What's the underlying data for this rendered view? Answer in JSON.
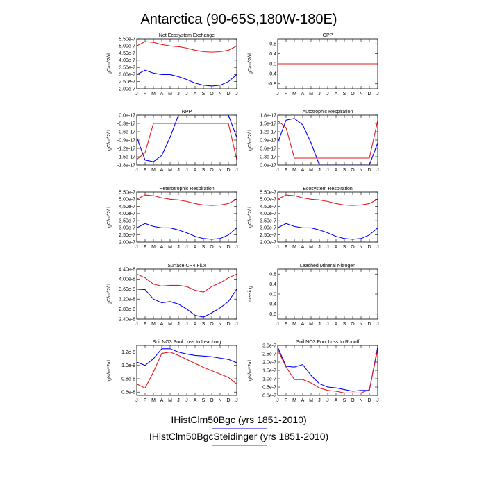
{
  "title": "Antarctica (90-65S,180W-180E)",
  "months": [
    "J",
    "F",
    "M",
    "A",
    "M",
    "J",
    "J",
    "A",
    "S",
    "O",
    "N",
    "D",
    "J"
  ],
  "colors": {
    "ctrl": "#0000ff",
    "exp": "#e31a1c"
  },
  "legend": [
    {
      "label": "IHistClm50Bgc (yrs 1851-2010)",
      "color": "#0000ff"
    },
    {
      "label": "IHistClm50BgcSteidinger (yrs 1851-2010)",
      "color": "#e31a1c"
    }
  ],
  "chart_data": [
    {
      "type": "line",
      "title": "Net Ecosystem Exchange",
      "ylabel": "gC/m^2/d",
      "ylim": [
        2e-07,
        5.5e-07
      ],
      "yticks": [
        2e-07,
        2.5e-07,
        3e-07,
        3.5e-07,
        4e-07,
        4.5e-07,
        5e-07,
        5.5e-07
      ],
      "ytick_labels": [
        "2.00e-7",
        "2.50e-7",
        "3.00e-7",
        "3.50e-7",
        "4.00e-7",
        "4.50e-7",
        "5.00e-7",
        "5.50e-7"
      ],
      "series": [
        {
          "values": [
            3e-07,
            3.3e-07,
            3.1e-07,
            3e-07,
            3e-07,
            2.85e-07,
            2.65e-07,
            2.4e-07,
            2.25e-07,
            2.2e-07,
            2.25e-07,
            2.5e-07,
            3e-07
          ]
        },
        {
          "values": [
            5e-07,
            5.3e-07,
            5.25e-07,
            5.1e-07,
            5e-07,
            4.95e-07,
            4.85e-07,
            4.7e-07,
            4.6e-07,
            4.57e-07,
            4.6e-07,
            4.7e-07,
            5e-07
          ]
        }
      ]
    },
    {
      "type": "line",
      "title": "GPP",
      "ylabel": "gC/m^2/d",
      "ylim": [
        -1.0,
        1.0
      ],
      "yticks": [
        -0.8,
        -0.4,
        0.0,
        0.4,
        0.8
      ],
      "ytick_labels": [
        "-0.8",
        "-0.4",
        "0.0",
        "0.4",
        "0.8"
      ],
      "series": [
        {
          "values": [
            0,
            0,
            0,
            0,
            0,
            0,
            0,
            0,
            0,
            0,
            0,
            0,
            0
          ]
        },
        {
          "values": [
            0,
            0,
            0,
            0,
            0,
            0,
            0,
            0,
            0,
            0,
            0,
            0,
            0
          ]
        }
      ]
    },
    {
      "type": "line",
      "title": "NPP",
      "ylabel": "gC/m^2/d",
      "ylim": [
        -1.8e-17,
        0.0
      ],
      "yticks": [
        0.0,
        -3e-18,
        -6e-18,
        -9e-18,
        -1.2e-17,
        -1.5e-17,
        -1.8e-17
      ],
      "ytick_labels": [
        "0.0e-17",
        "-0.3e-17",
        "-0.6e-17",
        "-0.9e-17",
        "-1.2e-17",
        "-1.5e-17",
        "-1.8e-17"
      ],
      "series": [
        {
          "values": [
            -8e-18,
            -1.62e-17,
            -1.68e-17,
            -1.45e-17,
            -8e-18,
            0.0,
            0.0,
            0.0,
            0.0,
            0.0,
            0.0,
            0.0,
            -8e-18
          ]
        },
        {
          "values": [
            -1.6e-17,
            -1.35e-17,
            -3e-18,
            -3e-18,
            -3e-18,
            -3e-18,
            -3e-18,
            -3e-18,
            -3e-18,
            -3e-18,
            -3e-18,
            -3e-18,
            -1.6e-17
          ]
        }
      ]
    },
    {
      "type": "line",
      "title": "Autotrophic Respiration",
      "ylabel": "gC/m^2/d",
      "ylim": [
        0.0,
        1.8e-17
      ],
      "yticks": [
        0.0,
        3e-18,
        6e-18,
        9e-18,
        1.2e-17,
        1.5e-17,
        1.8e-17
      ],
      "ytick_labels": [
        "0.0e-17",
        "0.3e-17",
        "0.6e-17",
        "0.9e-17",
        "1.2e-17",
        "1.5e-17",
        "1.8e-17"
      ],
      "series": [
        {
          "values": [
            8e-18,
            1.62e-17,
            1.68e-17,
            1.45e-17,
            8e-18,
            0.0,
            0.0,
            0.0,
            0.0,
            0.0,
            0.0,
            0.0,
            8e-18
          ]
        },
        {
          "values": [
            1.6e-17,
            1.35e-17,
            2.5e-18,
            2.5e-18,
            2.5e-18,
            2.5e-18,
            2.5e-18,
            2.5e-18,
            2.5e-18,
            2.5e-18,
            2.5e-18,
            2.5e-18,
            1.6e-17
          ]
        }
      ]
    },
    {
      "type": "line",
      "title": "Heterotrophic Respiration",
      "ylabel": "gC/m^2/d",
      "ylim": [
        2e-07,
        5.5e-07
      ],
      "yticks": [
        2e-07,
        2.5e-07,
        3e-07,
        3.5e-07,
        4e-07,
        4.5e-07,
        5e-07,
        5.5e-07
      ],
      "ytick_labels": [
        "2.00e-7",
        "2.50e-7",
        "3.00e-7",
        "3.50e-7",
        "4.00e-7",
        "4.50e-7",
        "5.00e-7",
        "5.50e-7"
      ],
      "series": [
        {
          "values": [
            3e-07,
            3.3e-07,
            3.1e-07,
            3e-07,
            3e-07,
            2.85e-07,
            2.65e-07,
            2.4e-07,
            2.25e-07,
            2.2e-07,
            2.25e-07,
            2.5e-07,
            3e-07
          ]
        },
        {
          "values": [
            5e-07,
            5.3e-07,
            5.25e-07,
            5.1e-07,
            5e-07,
            4.95e-07,
            4.85e-07,
            4.7e-07,
            4.6e-07,
            4.57e-07,
            4.6e-07,
            4.7e-07,
            5e-07
          ]
        }
      ]
    },
    {
      "type": "line",
      "title": "Ecosystem Respiration",
      "ylabel": "gC/m^2/d",
      "ylim": [
        2e-07,
        5.5e-07
      ],
      "yticks": [
        2e-07,
        2.5e-07,
        3e-07,
        3.5e-07,
        4e-07,
        4.5e-07,
        5e-07,
        5.5e-07
      ],
      "ytick_labels": [
        "2.00e-7",
        "2.50e-7",
        "3.00e-7",
        "3.50e-7",
        "4.00e-7",
        "4.50e-7",
        "5.00e-7",
        "5.50e-7"
      ],
      "series": [
        {
          "values": [
            3e-07,
            3.3e-07,
            3.1e-07,
            3e-07,
            3e-07,
            2.85e-07,
            2.65e-07,
            2.4e-07,
            2.25e-07,
            2.2e-07,
            2.25e-07,
            2.5e-07,
            3e-07
          ]
        },
        {
          "values": [
            5e-07,
            5.3e-07,
            5.25e-07,
            5.1e-07,
            5e-07,
            4.95e-07,
            4.85e-07,
            4.7e-07,
            4.6e-07,
            4.57e-07,
            4.6e-07,
            4.7e-07,
            5e-07
          ]
        }
      ]
    },
    {
      "type": "line",
      "title": "Surface CH4 Flux",
      "ylabel": "gC/m^2/d",
      "ylim": [
        2.4e-08,
        4.4e-08
      ],
      "yticks": [
        2.4e-08,
        2.8e-08,
        3.2e-08,
        3.6e-08,
        4e-08,
        4.4e-08
      ],
      "ytick_labels": [
        "2.40e-8",
        "2.80e-8",
        "3.20e-8",
        "3.60e-8",
        "4.00e-8",
        "4.40e-8"
      ],
      "series": [
        {
          "values": [
            3.6e-08,
            3.58e-08,
            3.2e-08,
            3.05e-08,
            3.1e-08,
            3e-08,
            2.8e-08,
            2.55e-08,
            2.48e-08,
            2.65e-08,
            2.85e-08,
            3.1e-08,
            3.6e-08
          ]
        },
        {
          "values": [
            4.2e-08,
            4.05e-08,
            3.8e-08,
            3.72e-08,
            3.75e-08,
            3.75e-08,
            3.7e-08,
            3.55e-08,
            3.48e-08,
            3.7e-08,
            3.85e-08,
            4.05e-08,
            4.2e-08
          ]
        }
      ]
    },
    {
      "type": "line",
      "title": "Leached Mineral Nitrogen",
      "ylabel": "missing",
      "ylim": [
        -1.0,
        1.0
      ],
      "yticks": [
        -0.8,
        -0.4,
        0.0,
        0.4,
        0.8
      ],
      "ytick_labels": [
        "-0.8",
        "-0.4",
        "0.0",
        "0.4",
        "0.8"
      ],
      "series": []
    },
    {
      "type": "line",
      "title": "Soil NO3 Pool Loss to Leaching",
      "ylabel": "gN/m^2/d",
      "ylim": [
        5.5e-09,
        1.3e-08
      ],
      "yticks": [
        6e-09,
        8e-09,
        1e-08,
        1.2e-08
      ],
      "ytick_labels": [
        "0.6e-8",
        "0.8e-8",
        "1.0e-8",
        "1.2e-8"
      ],
      "series": [
        {
          "values": [
            1.05e-08,
            1e-08,
            1.1e-08,
            1.25e-08,
            1.25e-08,
            1.2e-08,
            1.17e-08,
            1.15e-08,
            1.14e-08,
            1.13e-08,
            1.11e-08,
            1.09e-08,
            1.04e-08
          ]
        },
        {
          "values": [
            7.2e-09,
            6.6e-09,
            9e-09,
            1.18e-08,
            1.2e-08,
            1.15e-08,
            1.09e-08,
            1.03e-08,
            9.7e-09,
            9.2e-09,
            8.7e-09,
            8.2e-09,
            7.2e-09
          ]
        }
      ]
    },
    {
      "type": "line",
      "title": "Soil NO3 Pool Loss to Runoff",
      "ylabel": "gN/m^2/d",
      "ylim": [
        0.0,
        3e-07
      ],
      "yticks": [
        0.0,
        5e-08,
        1e-07,
        1.5e-07,
        2e-07,
        2.5e-07,
        3e-07
      ],
      "ytick_labels": [
        "0.0e-7",
        "0.5e-7",
        "1.0e-7",
        "1.5e-7",
        "2.0e-7",
        "2.5e-7",
        "3.0e-7"
      ],
      "series": [
        {
          "values": [
            2.9e-07,
            1.75e-07,
            1.7e-07,
            1.85e-07,
            1.2e-07,
            7e-08,
            5e-08,
            4.5e-08,
            3.5e-08,
            2.5e-08,
            3e-08,
            3e-08,
            2.9e-07
          ]
        },
        {
          "values": [
            2.75e-07,
            1.7e-07,
            9.5e-08,
            9.5e-08,
            7.5e-08,
            4.5e-08,
            3e-08,
            2.5e-08,
            1.5e-08,
            1.5e-08,
            1.5e-08,
            3.5e-08,
            2.75e-07
          ]
        }
      ]
    }
  ]
}
